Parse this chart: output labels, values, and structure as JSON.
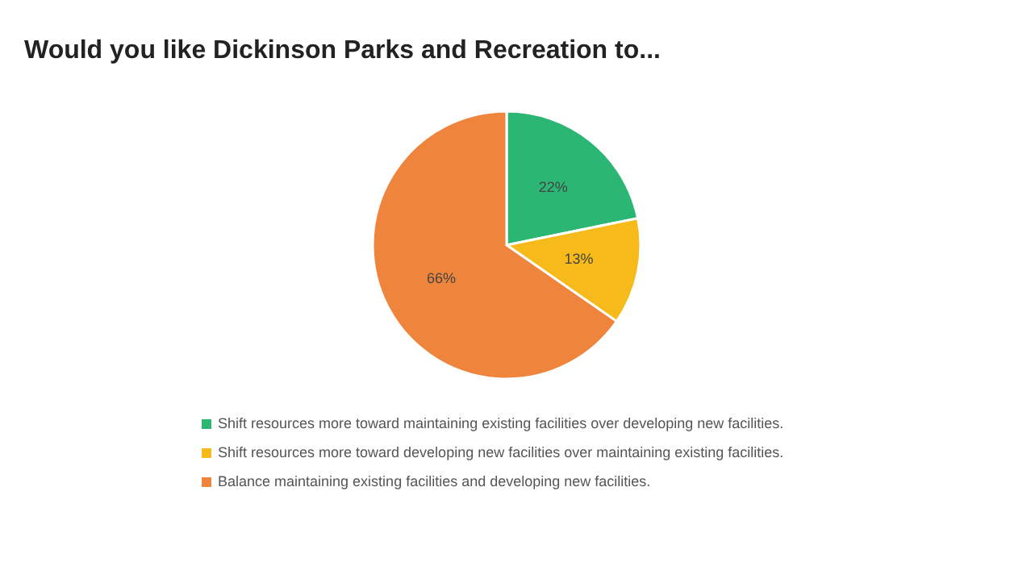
{
  "chart_data": {
    "type": "pie",
    "title": "Would you like Dickinson Parks and Recreation to...",
    "categories": [
      "Shift resources more toward maintaining existing facilities over developing new facilities.",
      "Shift resources more toward developing new facilities over maintaining existing facilities.",
      "Balance maintaining existing facilities and developing new facilities."
    ],
    "values": [
      22,
      13,
      66
    ],
    "colors": [
      "#2bb673",
      "#f6bb1a",
      "#ef843c"
    ],
    "value_labels": [
      "22%",
      "13%",
      "66%"
    ],
    "legend": "bottom"
  }
}
